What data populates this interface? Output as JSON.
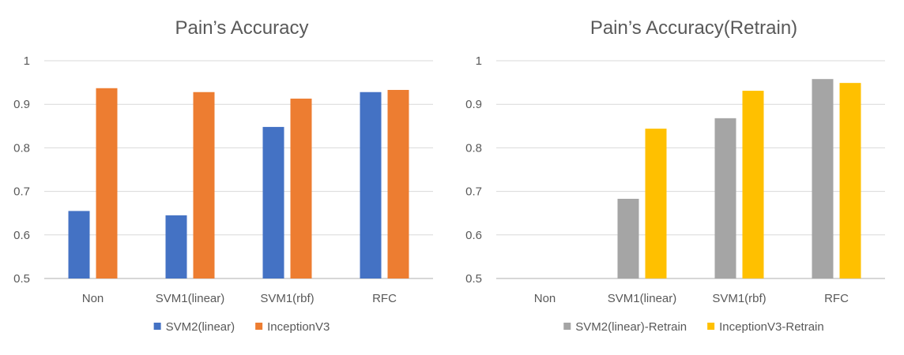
{
  "chart_data": [
    {
      "type": "bar",
      "title": "Pain’s Accuracy",
      "categories": [
        "Non",
        "SVM1(linear)",
        "SVM1(rbf)",
        "RFC"
      ],
      "series": [
        {
          "name": "SVM2(linear)",
          "color": "#4472C4",
          "values": [
            0.655,
            0.645,
            0.848,
            0.928
          ]
        },
        {
          "name": "InceptionV3",
          "color": "#ED7D31",
          "values": [
            0.937,
            0.928,
            0.913,
            0.933
          ]
        }
      ],
      "ylim": [
        0.5,
        1
      ],
      "yticks": [
        "0.5",
        "0.6",
        "0.7",
        "0.8",
        "0.9",
        "1"
      ],
      "grid": true,
      "legend": "bottom"
    },
    {
      "type": "bar",
      "title": "Pain’s Accuracy(Retrain)",
      "categories": [
        "Non",
        "SVM1(linear)",
        "SVM1(rbf)",
        "RFC"
      ],
      "series": [
        {
          "name": "SVM2(linear)-Retrain",
          "color": "#A5A5A5",
          "values": [
            null,
            0.683,
            0.868,
            0.958
          ]
        },
        {
          "name": "InceptionV3-Retrain",
          "color": "#FFC000",
          "values": [
            null,
            0.844,
            0.931,
            0.949
          ]
        }
      ],
      "ylim": [
        0.5,
        1
      ],
      "yticks": [
        "0.5",
        "0.6",
        "0.7",
        "0.8",
        "0.9",
        "1"
      ],
      "grid": true,
      "legend": "bottom"
    }
  ]
}
